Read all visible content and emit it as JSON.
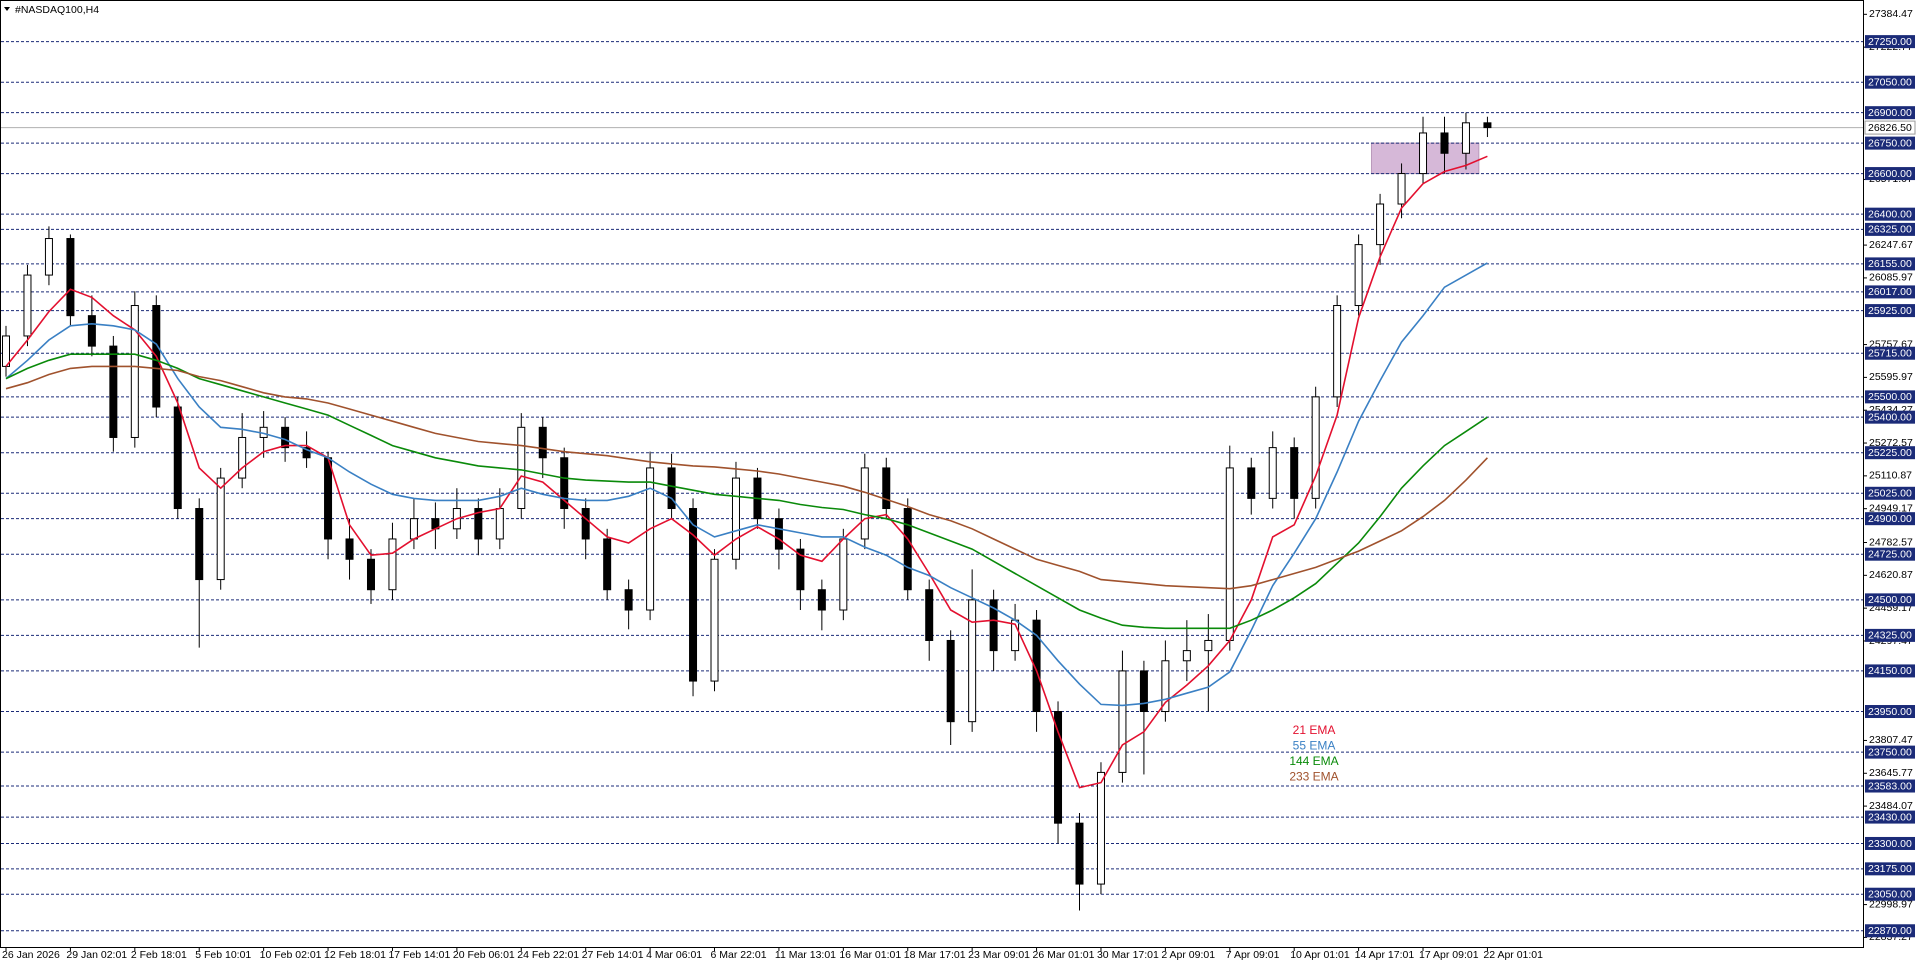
{
  "chart_data": {
    "type": "candlestick",
    "title": "#NASDAQ100,H4",
    "categories": [
      "26 Jan 2026",
      null,
      null,
      "29 Jan 02:01",
      null,
      null,
      "2 Feb 18:01",
      null,
      null,
      "5 Feb 10:01",
      null,
      null,
      "10 Feb 02:01",
      null,
      null,
      "12 Feb 18:01",
      null,
      null,
      "17 Feb 14:01",
      null,
      null,
      "20 Feb 06:01",
      null,
      null,
      "24 Feb 22:01",
      null,
      null,
      "27 Feb 14:01",
      null,
      null,
      "4 Mar 06:01",
      null,
      null,
      "6 Mar 22:01",
      null,
      null,
      "11 Mar 13:01",
      null,
      null,
      "16 Mar 01:01",
      null,
      null,
      "18 Mar 17:01",
      null,
      null,
      "23 Mar 09:01",
      null,
      null,
      "26 Mar 01:01",
      null,
      null,
      "30 Mar 17:01",
      null,
      null,
      "2 Apr 09:01",
      null,
      null,
      "7 Apr 09:01",
      null,
      null,
      "10 Apr 01:01",
      null,
      null,
      "14 Apr 17:01",
      null,
      null,
      "17 Apr 09:01",
      null,
      null,
      "22 Apr 01:01"
    ],
    "ohlc": [
      [
        25650,
        25850,
        25600,
        25800
      ],
      [
        25800,
        26150,
        25750,
        26100
      ],
      [
        26100,
        26340,
        26050,
        26280
      ],
      [
        26280,
        26300,
        25850,
        25900
      ],
      [
        25900,
        26000,
        25700,
        25750
      ],
      [
        25750,
        25800,
        25230,
        25300
      ],
      [
        25300,
        26020,
        25250,
        25950
      ],
      [
        25950,
        26000,
        25400,
        25450
      ],
      [
        25450,
        25500,
        24900,
        24950
      ],
      [
        24950,
        25000,
        24265,
        24600
      ],
      [
        24600,
        25150,
        24550,
        25100
      ],
      [
        25100,
        25420,
        25050,
        25300
      ],
      [
        25300,
        25430,
        25200,
        25350
      ],
      [
        25350,
        25400,
        25180,
        25250
      ],
      [
        25250,
        25330,
        25150,
        25200
      ],
      [
        25200,
        25230,
        24700,
        24800
      ],
      [
        24800,
        24900,
        24600,
        24700
      ],
      [
        24700,
        24750,
        24480,
        24550
      ],
      [
        24550,
        24880,
        24500,
        24800
      ],
      [
        24800,
        25000,
        24750,
        24900
      ],
      [
        24900,
        24980,
        24750,
        24850
      ],
      [
        24850,
        25050,
        24800,
        24950
      ],
      [
        24950,
        25000,
        24720,
        24800
      ],
      [
        24800,
        25050,
        24750,
        24950
      ],
      [
        24950,
        25420,
        24900,
        25350
      ],
      [
        25350,
        25400,
        25100,
        25200
      ],
      [
        25200,
        25250,
        24850,
        24950
      ],
      [
        24950,
        25000,
        24700,
        24800
      ],
      [
        24800,
        24850,
        24500,
        24550
      ],
      [
        24550,
        24600,
        24355,
        24450
      ],
      [
        24450,
        25230,
        24400,
        25150
      ],
      [
        25150,
        25220,
        24900,
        24950
      ],
      [
        24950,
        25000,
        24025,
        24100
      ],
      [
        24100,
        24750,
        24050,
        24700
      ],
      [
        24700,
        25180,
        24650,
        25100
      ],
      [
        25100,
        25150,
        24850,
        24900
      ],
      [
        24900,
        24950,
        24650,
        24750
      ],
      [
        24750,
        24800,
        24450,
        24550
      ],
      [
        24550,
        24600,
        24350,
        24450
      ],
      [
        24450,
        24850,
        24400,
        24800
      ],
      [
        24800,
        25220,
        24750,
        25150
      ],
      [
        25150,
        25200,
        24900,
        24950
      ],
      [
        24950,
        25000,
        24500,
        24550
      ],
      [
        24550,
        24600,
        24200,
        24300
      ],
      [
        24300,
        24350,
        23785,
        23900
      ],
      [
        23900,
        24650,
        23850,
        24500
      ],
      [
        24500,
        24550,
        24150,
        24250
      ],
      [
        24250,
        24480,
        24200,
        24400
      ],
      [
        24400,
        24450,
        23850,
        23950
      ],
      [
        23950,
        24000,
        23300,
        23400
      ],
      [
        23400,
        23450,
        22970,
        23100
      ],
      [
        23100,
        23700,
        23050,
        23650
      ],
      [
        23650,
        24250,
        23600,
        24150
      ],
      [
        24150,
        24200,
        23640,
        23950
      ],
      [
        23950,
        24300,
        23900,
        24200
      ],
      [
        24200,
        24400,
        24100,
        24250
      ],
      [
        24250,
        24430,
        23950,
        24300
      ],
      [
        24300,
        25260,
        24250,
        25150
      ],
      [
        25150,
        25200,
        24920,
        25000
      ],
      [
        25000,
        25330,
        24950,
        25250
      ],
      [
        25250,
        25300,
        24900,
        25000
      ],
      [
        25000,
        25550,
        24950,
        25500
      ],
      [
        25500,
        26000,
        25450,
        25950
      ],
      [
        25950,
        26300,
        25900,
        26250
      ],
      [
        26250,
        26500,
        26150,
        26450
      ],
      [
        26450,
        26650,
        26380,
        26600
      ],
      [
        26600,
        26880,
        26550,
        26800
      ],
      [
        26800,
        26880,
        26600,
        26700
      ],
      [
        26700,
        26900,
        26620,
        26850
      ],
      [
        26850,
        26880,
        26780,
        26826.5
      ]
    ],
    "series": [
      {
        "name": "21 EMA",
        "color": "#e3102f",
        "values": [
          25650,
          25780,
          25920,
          26030,
          25990,
          25900,
          25830,
          25700,
          25470,
          25150,
          25050,
          25150,
          25230,
          25260,
          25260,
          25200,
          24870,
          24720,
          24730,
          24800,
          24850,
          24900,
          24930,
          24950,
          25110,
          25080,
          24990,
          24900,
          24810,
          24780,
          24850,
          24900,
          24820,
          24720,
          24800,
          24860,
          24800,
          24720,
          24690,
          24800,
          24900,
          24920,
          24800,
          24630,
          24450,
          24390,
          24400,
          24380,
          24150,
          23850,
          23575,
          23600,
          23785,
          23850,
          23995,
          24080,
          24175,
          24300,
          24500,
          24810,
          24870,
          25110,
          25410,
          25890,
          26190,
          26430,
          26550,
          26610,
          26640,
          26685
        ]
      },
      {
        "name": "55 EMA",
        "color": "#3a80c4",
        "values": [
          25590,
          25680,
          25780,
          25850,
          25860,
          25850,
          25830,
          25760,
          25590,
          25450,
          25350,
          25340,
          25320,
          25290,
          25240,
          25200,
          25130,
          25070,
          25020,
          25000,
          24990,
          24990,
          24990,
          25010,
          25050,
          25020,
          25000,
          24990,
          24990,
          25010,
          25050,
          25000,
          24870,
          24810,
          24840,
          24870,
          24850,
          24830,
          24810,
          24810,
          24760,
          24720,
          24660,
          24620,
          24560,
          24510,
          24460,
          24400,
          24325,
          24200,
          24085,
          23985,
          23980,
          23990,
          24010,
          24040,
          24070,
          24145,
          24350,
          24570,
          24730,
          24900,
          25130,
          25380,
          25580,
          25770,
          25900,
          26040,
          26100,
          26160
        ]
      },
      {
        "name": "144 EMA",
        "color": "#0a8a0a",
        "values": [
          25590,
          25640,
          25680,
          25710,
          25710,
          25710,
          25710,
          25680,
          25640,
          25590,
          25560,
          25530,
          25500,
          25470,
          25440,
          25410,
          25360,
          25310,
          25260,
          25230,
          25200,
          25180,
          25160,
          25150,
          25140,
          25120,
          25100,
          25090,
          25085,
          25080,
          25080,
          25060,
          25040,
          25020,
          25010,
          25000,
          24990,
          24970,
          24955,
          24945,
          24920,
          24900,
          24870,
          24830,
          24790,
          24750,
          24690,
          24630,
          24570,
          24510,
          24450,
          24410,
          24375,
          24365,
          24360,
          24360,
          24360,
          24360,
          24400,
          24450,
          24510,
          24580,
          24680,
          24780,
          24910,
          25050,
          25160,
          25260,
          25330,
          25400
        ]
      },
      {
        "name": "233 EMA",
        "color": "#a0522d",
        "values": [
          25540,
          25570,
          25610,
          25640,
          25650,
          25650,
          25650,
          25640,
          25630,
          25600,
          25580,
          25550,
          25520,
          25500,
          25490,
          25470,
          25440,
          25410,
          25380,
          25350,
          25320,
          25300,
          25280,
          25270,
          25260,
          25245,
          25230,
          25220,
          25210,
          25195,
          25180,
          25170,
          25160,
          25155,
          25145,
          25135,
          25120,
          25100,
          25080,
          25060,
          25030,
          24995,
          24960,
          24920,
          24890,
          24850,
          24800,
          24750,
          24700,
          24670,
          24640,
          24600,
          24590,
          24580,
          24570,
          24565,
          24560,
          24555,
          24570,
          24600,
          24630,
          24660,
          24700,
          24740,
          24790,
          24840,
          24910,
          24990,
          25090,
          25200
        ]
      }
    ],
    "ylim": [
      22790,
      27455
    ],
    "yticks": [
      27384.47,
      27222.77,
      26571.07,
      26247.67,
      26085.97,
      25757.67,
      25595.97,
      25434.27,
      25272.57,
      25110.87,
      24949.17,
      24782.57,
      24620.87,
      24459.17,
      24297.47,
      23807.47,
      23645.77,
      23484.07,
      22998.97,
      22837.27
    ],
    "levels": [
      {
        "value": 27250,
        "label": "27250.00"
      },
      {
        "value": 27050,
        "label": "27050.00"
      },
      {
        "value": 26900,
        "label": "26900.00"
      },
      {
        "value": 26750,
        "label": "26750.00"
      },
      {
        "value": 26600,
        "label": "26600.00"
      },
      {
        "value": 26400,
        "label": "26400.00"
      },
      {
        "value": 26325,
        "label": "26325.00"
      },
      {
        "value": 26155,
        "label": "26155.00"
      },
      {
        "value": 26017,
        "label": "26017.00"
      },
      {
        "value": 25925,
        "label": "25925.00"
      },
      {
        "value": 25715,
        "label": "25715.00"
      },
      {
        "value": 25500,
        "label": "25500.00"
      },
      {
        "value": 25400,
        "label": "25400.00"
      },
      {
        "value": 25225,
        "label": "25225.00"
      },
      {
        "value": 25025,
        "label": "25025.00"
      },
      {
        "value": 24900,
        "label": "24900.00"
      },
      {
        "value": 24725,
        "label": "24725.00"
      },
      {
        "value": 24500,
        "label": "24500.00"
      },
      {
        "value": 24325,
        "label": "24325.00"
      },
      {
        "value": 24150,
        "label": "24150.00"
      },
      {
        "value": 23950,
        "label": "23950.00"
      },
      {
        "value": 23750,
        "label": "23750.00"
      },
      {
        "value": 23583,
        "label": "23583.00"
      },
      {
        "value": 23430,
        "label": "23430.00"
      },
      {
        "value": 23300,
        "label": "23300.00"
      },
      {
        "value": 23175,
        "label": "23175.00"
      },
      {
        "value": 23050,
        "label": "23050.00"
      },
      {
        "value": 22870,
        "label": "22870.00"
      }
    ],
    "current_price": {
      "value": 26826.5,
      "label": "26826.50"
    },
    "zone": [
      26600,
      26750
    ],
    "level_color": "#1b2b78",
    "zone_color": "#d6b8d8"
  }
}
